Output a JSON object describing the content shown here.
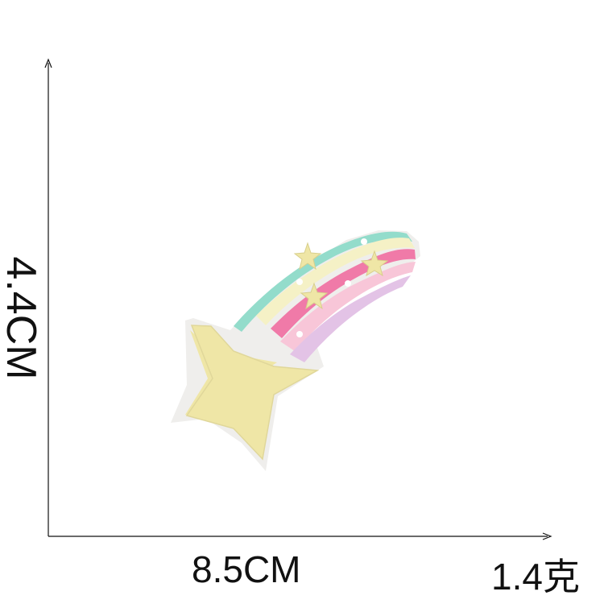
{
  "dimensions": {
    "height": "4.4CM",
    "width": "8.5CM",
    "weight": "1.4克"
  },
  "product": {
    "icon": "shooting-star-rainbow-patch",
    "colors": {
      "star": "#efe6a6",
      "teal": "#93dccb",
      "pink": "#f07aa8",
      "lightpink": "#f8c6d8",
      "lavender": "#e3c3e6",
      "border": "#e8e6e3"
    }
  }
}
